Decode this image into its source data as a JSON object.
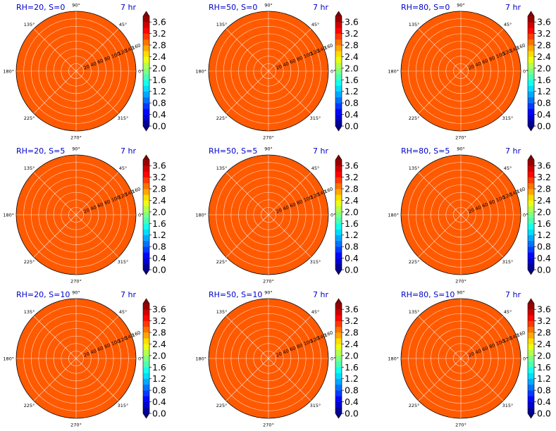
{
  "figure": {
    "time_label": "7 hr",
    "fill_color": "#ff5a00",
    "fill_value": 3.0,
    "colormap": "jet"
  },
  "chart_data": [
    {
      "type": "heatmap",
      "title": "RH=20, S=0",
      "radial_range": [
        0,
        160
      ],
      "radial_ticks": [
        "20",
        "40",
        "60",
        "80",
        "100",
        "120",
        "140",
        "160"
      ],
      "angular_ticks": [
        "0°",
        "45°",
        "90°",
        "135°",
        "180°",
        "225°",
        "270°",
        "315°"
      ],
      "colorbar_ticks": [
        "0.0",
        "0.4",
        "0.8",
        "1.2",
        "1.6",
        "2.0",
        "2.4",
        "2.8",
        "3.2",
        "3.6"
      ],
      "colorbar_range": [
        0,
        3.8
      ],
      "value": 3.0
    },
    {
      "type": "heatmap",
      "title": "RH=50, S=0",
      "radial_range": [
        0,
        160
      ],
      "radial_ticks": [
        "20",
        "40",
        "60",
        "80",
        "100",
        "120",
        "140",
        "160"
      ],
      "angular_ticks": [
        "0°",
        "45°",
        "90°",
        "135°",
        "180°",
        "225°",
        "270°",
        "315°"
      ],
      "colorbar_ticks": [
        "0.0",
        "0.4",
        "0.8",
        "1.2",
        "1.6",
        "2.0",
        "2.4",
        "2.8",
        "3.2",
        "3.6"
      ],
      "colorbar_range": [
        0,
        3.8
      ],
      "value": 3.0
    },
    {
      "type": "heatmap",
      "title": "RH=80, S=0",
      "radial_range": [
        0,
        160
      ],
      "radial_ticks": [
        "20",
        "40",
        "60",
        "80",
        "100",
        "120",
        "140",
        "160"
      ],
      "angular_ticks": [
        "0°",
        "45°",
        "90°",
        "135°",
        "180°",
        "225°",
        "270°",
        "315°"
      ],
      "colorbar_ticks": [
        "0.0",
        "0.4",
        "0.8",
        "1.2",
        "1.6",
        "2.0",
        "2.4",
        "2.8",
        "3.2",
        "3.6"
      ],
      "colorbar_range": [
        0,
        3.8
      ],
      "value": 3.0
    },
    {
      "type": "heatmap",
      "title": "RH=20, S=5",
      "radial_range": [
        0,
        160
      ],
      "radial_ticks": [
        "20",
        "40",
        "60",
        "80",
        "100",
        "120",
        "140",
        "160"
      ],
      "angular_ticks": [
        "0°",
        "45°",
        "90°",
        "135°",
        "180°",
        "225°",
        "270°",
        "315°"
      ],
      "colorbar_ticks": [
        "0.0",
        "0.4",
        "0.8",
        "1.2",
        "1.6",
        "2.0",
        "2.4",
        "2.8",
        "3.2",
        "3.6"
      ],
      "colorbar_range": [
        0,
        3.8
      ],
      "value": 3.0
    },
    {
      "type": "heatmap",
      "title": "RH=50, S=5",
      "radial_range": [
        0,
        160
      ],
      "radial_ticks": [
        "20",
        "40",
        "60",
        "80",
        "100",
        "120",
        "140",
        "160"
      ],
      "angular_ticks": [
        "0°",
        "45°",
        "90°",
        "135°",
        "180°",
        "225°",
        "270°",
        "315°"
      ],
      "colorbar_ticks": [
        "0.0",
        "0.4",
        "0.8",
        "1.2",
        "1.6",
        "2.0",
        "2.4",
        "2.8",
        "3.2",
        "3.6"
      ],
      "colorbar_range": [
        0,
        3.8
      ],
      "value": 3.0
    },
    {
      "type": "heatmap",
      "title": "RH=80, S=5",
      "radial_range": [
        0,
        160
      ],
      "radial_ticks": [
        "20",
        "40",
        "60",
        "80",
        "100",
        "120",
        "140",
        "160"
      ],
      "angular_ticks": [
        "0°",
        "45°",
        "90°",
        "135°",
        "180°",
        "225°",
        "270°",
        "315°"
      ],
      "colorbar_ticks": [
        "0.0",
        "0.4",
        "0.8",
        "1.2",
        "1.6",
        "2.0",
        "2.4",
        "2.8",
        "3.2",
        "3.6"
      ],
      "colorbar_range": [
        0,
        3.8
      ],
      "value": 3.0
    },
    {
      "type": "heatmap",
      "title": "RH=20, S=10",
      "radial_range": [
        0,
        160
      ],
      "radial_ticks": [
        "20",
        "40",
        "60",
        "80",
        "100",
        "120",
        "140",
        "160"
      ],
      "angular_ticks": [
        "0°",
        "45°",
        "90°",
        "135°",
        "180°",
        "225°",
        "270°",
        "315°"
      ],
      "colorbar_ticks": [
        "0.0",
        "0.4",
        "0.8",
        "1.2",
        "1.6",
        "2.0",
        "2.4",
        "2.8",
        "3.2",
        "3.6"
      ],
      "colorbar_range": [
        0,
        3.8
      ],
      "value": 3.0
    },
    {
      "type": "heatmap",
      "title": "RH=50, S=10",
      "radial_range": [
        0,
        160
      ],
      "radial_ticks": [
        "20",
        "40",
        "60",
        "80",
        "100",
        "120",
        "140",
        "160"
      ],
      "angular_ticks": [
        "0°",
        "45°",
        "90°",
        "135°",
        "180°",
        "225°",
        "270°",
        "315°"
      ],
      "colorbar_ticks": [
        "0.0",
        "0.4",
        "0.8",
        "1.2",
        "1.6",
        "2.0",
        "2.4",
        "2.8",
        "3.2",
        "3.6"
      ],
      "colorbar_range": [
        0,
        3.8
      ],
      "value": 3.0
    },
    {
      "type": "heatmap",
      "title": "RH=80, S=10",
      "radial_range": [
        0,
        160
      ],
      "radial_ticks": [
        "20",
        "40",
        "60",
        "80",
        "100",
        "120",
        "140",
        "160"
      ],
      "angular_ticks": [
        "0°",
        "45°",
        "90°",
        "135°",
        "180°",
        "225°",
        "270°",
        "315°"
      ],
      "colorbar_ticks": [
        "0.0",
        "0.4",
        "0.8",
        "1.2",
        "1.6",
        "2.0",
        "2.4",
        "2.8",
        "3.2",
        "3.6"
      ],
      "colorbar_range": [
        0,
        3.8
      ],
      "value": 3.0
    }
  ]
}
